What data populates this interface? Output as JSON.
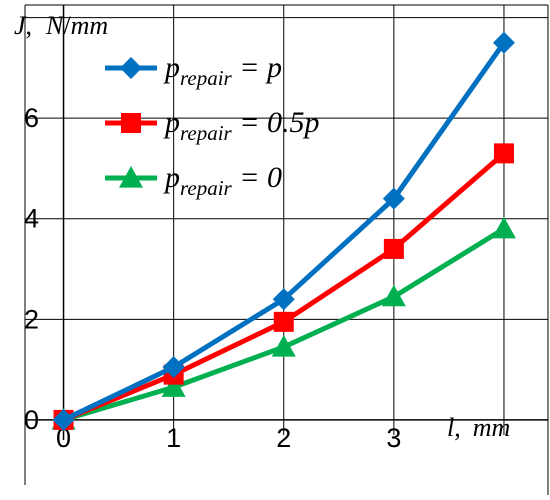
{
  "chart_data": {
    "type": "line",
    "x": [
      0,
      1,
      2,
      3,
      4
    ],
    "x_tick_labels": [
      "0",
      "1",
      "2",
      "3"
    ],
    "y_tick_labels": [
      "0",
      "2",
      "4",
      "6"
    ],
    "xlim": [
      -0.35,
      4.4
    ],
    "ylim": [
      -0.3,
      8.25
    ],
    "ylabel_parts": {
      "j": "J",
      "sep": ",",
      "n": "N",
      "slash": "/",
      "mm": "mm"
    },
    "xlabel_parts": {
      "l": "l",
      "sep": ",",
      "mm": "mm"
    },
    "grid": true,
    "legend_position": "top-left",
    "series": [
      {
        "name": "p_repair = p",
        "legend_main": "p",
        "legend_sub": "repair",
        "legend_rest": " = p",
        "color": "#0070C0",
        "marker": "diamond",
        "values": [
          0.0,
          1.05,
          2.4,
          4.4,
          7.5
        ]
      },
      {
        "name": "p_repair = 0.5p",
        "legend_main": "p",
        "legend_sub": "repair",
        "legend_rest": " = 0.5p",
        "color": "#FF0000",
        "marker": "square",
        "values": [
          0.0,
          0.9,
          1.95,
          3.4,
          5.3
        ]
      },
      {
        "name": "p_repair = 0",
        "legend_main": "p",
        "legend_sub": "repair",
        "legend_rest": " = 0",
        "color": "#00B050",
        "marker": "triangle",
        "values": [
          0.0,
          0.65,
          1.45,
          2.45,
          3.8
        ]
      }
    ]
  }
}
